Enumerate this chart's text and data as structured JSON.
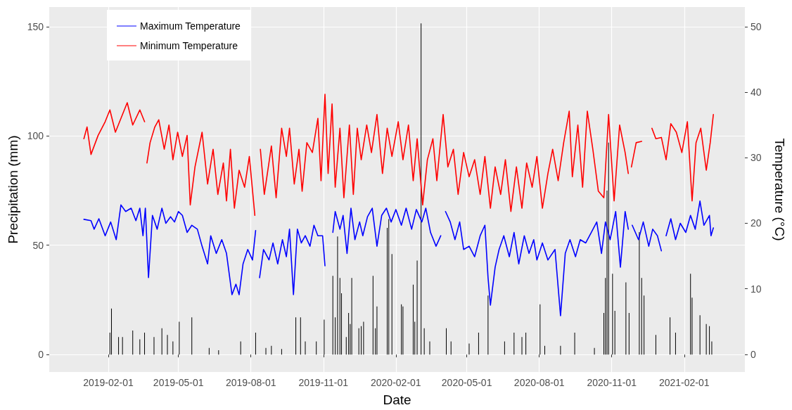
{
  "chart_data": {
    "type": "line",
    "xlabel": "Date",
    "ylabel": "Precipitation (mm)",
    "y2label": "Temperature (°C)",
    "xlim": [
      "2018-11-18",
      "2021-04-19"
    ],
    "xticks": [
      "2019-02-01",
      "2019-05-01",
      "2019-08-01",
      "2019-11-01",
      "2020-02-01",
      "2020-05-01",
      "2020-08-01",
      "2020-11-01",
      "2021-02-01"
    ],
    "ylim": [
      -8,
      159
    ],
    "yticks": [
      0,
      50,
      100,
      150
    ],
    "y2lim": [
      -2.7,
      53
    ],
    "y2ticks": [
      0,
      10,
      20,
      30,
      40,
      50
    ],
    "grid": true,
    "legend": "top left",
    "line_style": "solid",
    "marker": "none",
    "series": [
      {
        "type": "bar",
        "color": "#000000",
        "x": [
          "2019-02-03",
          "2019-02-05",
          "2019-02-14",
          "2019-02-19",
          "2019-03-04",
          "2019-03-13",
          "2019-03-19",
          "2019-03-31",
          "2019-04-10",
          "2019-04-17",
          "2019-04-24",
          "2019-05-02",
          "2019-05-18",
          "2019-06-09",
          "2019-06-21",
          "2019-07-19",
          "2019-08-07",
          "2019-08-20",
          "2019-08-27",
          "2019-09-09",
          "2019-09-27",
          "2019-10-03",
          "2019-10-09",
          "2019-10-23",
          "2019-11-02",
          "2019-11-13",
          "2019-11-16",
          "2019-11-19",
          "2019-11-22",
          "2019-11-24",
          "2019-11-30",
          "2019-12-03",
          "2019-12-05",
          "2019-12-07",
          "2019-12-16",
          "2019-12-19",
          "2019-12-22",
          "2020-01-03",
          "2020-01-06",
          "2020-01-08",
          "2020-01-21",
          "2020-01-23",
          "2020-01-27",
          "2020-02-08",
          "2020-02-10",
          "2020-02-23",
          "2020-02-25",
          "2020-02-28",
          "2020-03-04",
          "2020-03-08",
          "2020-03-15",
          "2020-04-05",
          "2020-04-11",
          "2020-05-04",
          "2020-05-16",
          "2020-05-28",
          "2020-06-18",
          "2020-06-30",
          "2020-07-10",
          "2020-07-15",
          "2020-08-02",
          "2020-08-08",
          "2020-08-28",
          "2020-09-15",
          "2020-10-10",
          "2020-10-22",
          "2020-10-24",
          "2020-10-26",
          "2020-10-28",
          "2020-11-02",
          "2020-11-05",
          "2020-11-19",
          "2020-11-23",
          "2020-12-06",
          "2020-12-09",
          "2020-12-12",
          "2020-12-27",
          "2021-01-14",
          "2021-01-21",
          "2021-02-09",
          "2021-02-11",
          "2021-02-21",
          "2021-03-01",
          "2021-03-05",
          "2021-03-08"
        ],
        "values": [
          10,
          21,
          8,
          8,
          11,
          7,
          10,
          8,
          12,
          9,
          6,
          15,
          17,
          3,
          2,
          6,
          10,
          3,
          4,
          2.5,
          17,
          17,
          6,
          6,
          16,
          36,
          17,
          54,
          35,
          28,
          8,
          19,
          14,
          35,
          12,
          13,
          15,
          36,
          12,
          22,
          58,
          62,
          46,
          23,
          22,
          32,
          15,
          43,
          151.5,
          12,
          6,
          12,
          6,
          5,
          10,
          27,
          6,
          10,
          8,
          10,
          23,
          4,
          4,
          10,
          3,
          19,
          35,
          75,
          97,
          37,
          20,
          33,
          19,
          56,
          35,
          27,
          9,
          17,
          10,
          37,
          26,
          18,
          14,
          13,
          6
        ]
      },
      {
        "name": "Maximum Temperature",
        "color": "#0000ff",
        "axis": "y2",
        "x": [
          "2019-01-01",
          "2019-01-10",
          "2019-01-14",
          "2019-01-20",
          "2019-01-28",
          "2019-02-04",
          "2019-02-11",
          "2019-02-17",
          "2019-02-23",
          "2019-03-02",
          "2019-03-08",
          "2019-03-13",
          "2019-03-17",
          "2019-03-20",
          "2019-03-24",
          "2019-03-29",
          "2019-04-04",
          "2019-04-10",
          "2019-04-15",
          "2019-04-21",
          "2019-04-26",
          "2019-05-01",
          "2019-05-06",
          "2019-05-12",
          "2019-05-18",
          "2019-05-25",
          "2019-05-31",
          "2019-06-07",
          "2019-06-11",
          "2019-06-18",
          "2019-06-25",
          "2019-07-01",
          "2019-07-08",
          "2019-07-13",
          "2019-07-17",
          "2019-07-22",
          "2019-07-28",
          "2019-08-03",
          "2019-08-07",
          "2019-08-09",
          "2019-08-12",
          "2019-08-17",
          "2019-08-24",
          "2019-08-29",
          "2019-09-04",
          "2019-09-10",
          "2019-09-15",
          "2019-09-19",
          "2019-09-24",
          "2019-09-29",
          "2019-10-04",
          "2019-10-09",
          "2019-10-15",
          "2019-10-20",
          "2019-10-25",
          "2019-10-31",
          "2019-11-03",
          "2019-11-07",
          "2019-11-13",
          "2019-11-16",
          "2019-11-22",
          "2019-11-26",
          "2019-12-01",
          "2019-12-06",
          "2019-12-11",
          "2019-12-17",
          "2019-12-21",
          "2019-12-27",
          "2020-01-02",
          "2020-01-08",
          "2020-01-14",
          "2020-01-20",
          "2020-01-26",
          "2020-02-01",
          "2020-02-08",
          "2020-02-14",
          "2020-02-21",
          "2020-02-27",
          "2020-03-05",
          "2020-03-10",
          "2020-03-16",
          "2020-03-23",
          "2020-03-29",
          "2020-04-01",
          "2020-04-04",
          "2020-04-10",
          "2020-04-16",
          "2020-04-22",
          "2020-04-27",
          "2020-05-04",
          "2020-05-11",
          "2020-05-18",
          "2020-05-24",
          "2020-05-28",
          "2020-05-31",
          "2020-06-06",
          "2020-06-11",
          "2020-06-17",
          "2020-06-24",
          "2020-06-30",
          "2020-07-06",
          "2020-07-13",
          "2020-07-19",
          "2020-07-25",
          "2020-07-29",
          "2020-08-05",
          "2020-08-12",
          "2020-08-21",
          "2020-08-28",
          "2020-09-03",
          "2020-09-09",
          "2020-09-16",
          "2020-09-22",
          "2020-09-29",
          "2020-10-06",
          "2020-10-13",
          "2020-10-19",
          "2020-10-24",
          "2020-10-30",
          "2020-11-06",
          "2020-11-12",
          "2020-11-18",
          "2020-11-22",
          "2020-11-24",
          "2020-11-27",
          "2020-12-05",
          "2020-12-11",
          "2020-12-18",
          "2020-12-23",
          "2020-12-29",
          "2021-01-03",
          "2021-01-05",
          "2021-01-09",
          "2021-01-15",
          "2021-01-21",
          "2021-01-27",
          "2021-02-03",
          "2021-02-09",
          "2021-02-15",
          "2021-02-21",
          "2021-02-26",
          "2021-03-05",
          "2021-03-07",
          "2021-03-10"
        ],
        "values": [
          20.6,
          20.4,
          19.1,
          20.7,
          18.1,
          20.2,
          17.5,
          22.8,
          21.8,
          22.3,
          20.4,
          22.3,
          18.1,
          22.3,
          11.7,
          21.2,
          19.1,
          22.3,
          20.0,
          21.0,
          20.2,
          21.8,
          21.2,
          18.6,
          19.7,
          19.1,
          16.5,
          13.8,
          18.1,
          15.4,
          17.5,
          15.4,
          9.1,
          10.7,
          9.1,
          13.8,
          16.0,
          14.4,
          18.9,
          null,
          11.7,
          16.0,
          14.4,
          17.0,
          13.8,
          17.5,
          14.9,
          19.1,
          9.1,
          19.1,
          17.0,
          18.1,
          16.5,
          19.7,
          18.1,
          18.1,
          13.5,
          null,
          18.6,
          21.8,
          19.1,
          21.2,
          15.4,
          22.3,
          17.5,
          20.2,
          18.1,
          21.0,
          22.3,
          16.5,
          21.2,
          22.3,
          20.2,
          22.1,
          19.7,
          22.3,
          19.1,
          22.1,
          20.2,
          22.3,
          18.6,
          16.5,
          18.1,
          null,
          21.8,
          20.2,
          17.5,
          20.2,
          16.0,
          16.5,
          14.9,
          18.1,
          19.7,
          11.7,
          7.5,
          13.3,
          16.0,
          18.1,
          14.9,
          18.6,
          13.8,
          18.1,
          15.4,
          17.5,
          14.4,
          17.0,
          14.4,
          16.0,
          5.9,
          15.4,
          17.5,
          14.9,
          17.5,
          17.0,
          18.6,
          20.2,
          15.4,
          20.2,
          17.5,
          21.8,
          13.3,
          21.8,
          19.1,
          null,
          19.7,
          17.5,
          20.2,
          16.5,
          19.1,
          18.1,
          15.8,
          null,
          18.1,
          20.7,
          17.5,
          20.0,
          18.6,
          21.2,
          19.1,
          23.4,
          19.7,
          21.2,
          18.1,
          19.3
        ]
      },
      {
        "name": "Minimum Temperature",
        "color": "#ff0000",
        "axis": "y2",
        "x": [
          "2019-01-01",
          "2019-01-05",
          "2019-01-10",
          "2019-01-19",
          "2019-01-28",
          "2019-02-03",
          "2019-02-10",
          "2019-02-19",
          "2019-02-25",
          "2019-03-04",
          "2019-03-13",
          "2019-03-19",
          "2019-03-20",
          "2019-03-22",
          "2019-03-26",
          "2019-04-01",
          "2019-04-06",
          "2019-04-13",
          "2019-04-19",
          "2019-04-24",
          "2019-04-30",
          "2019-05-06",
          "2019-05-12",
          "2019-05-16",
          "2019-05-22",
          "2019-05-31",
          "2019-06-07",
          "2019-06-14",
          "2019-06-20",
          "2019-06-27",
          "2019-07-01",
          "2019-07-06",
          "2019-07-11",
          "2019-07-17",
          "2019-07-24",
          "2019-07-30",
          "2019-08-06",
          "2019-08-09",
          "2019-08-13",
          "2019-08-18",
          "2019-08-27",
          "2019-09-02",
          "2019-09-09",
          "2019-09-15",
          "2019-09-19",
          "2019-09-25",
          "2019-10-01",
          "2019-10-05",
          "2019-10-11",
          "2019-10-18",
          "2019-10-25",
          "2019-10-29",
          "2019-11-03",
          "2019-11-07",
          "2019-11-12",
          "2019-11-16",
          "2019-11-22",
          "2019-11-27",
          "2019-12-04",
          "2019-12-09",
          "2019-12-14",
          "2019-12-19",
          "2019-12-26",
          "2020-01-01",
          "2020-01-08",
          "2020-01-15",
          "2020-01-21",
          "2020-01-27",
          "2020-02-04",
          "2020-02-10",
          "2020-02-17",
          "2020-02-23",
          "2020-02-28",
          "2020-03-06",
          "2020-03-12",
          "2020-03-19",
          "2020-03-24",
          "2020-04-01",
          "2020-04-07",
          "2020-04-14",
          "2020-04-20",
          "2020-04-27",
          "2020-05-04",
          "2020-05-11",
          "2020-05-18",
          "2020-05-24",
          "2020-05-31",
          "2020-06-06",
          "2020-06-13",
          "2020-06-19",
          "2020-06-26",
          "2020-07-03",
          "2020-07-10",
          "2020-07-16",
          "2020-07-23",
          "2020-07-29",
          "2020-08-05",
          "2020-08-12",
          "2020-08-18",
          "2020-08-25",
          "2020-09-01",
          "2020-09-08",
          "2020-09-12",
          "2020-09-19",
          "2020-09-25",
          "2020-10-01",
          "2020-10-08",
          "2020-10-15",
          "2020-10-22",
          "2020-10-28",
          "2020-11-04",
          "2020-11-11",
          "2020-11-18",
          "2020-11-22",
          "2020-11-24",
          "2020-11-26",
          "2020-12-02",
          "2020-12-09",
          "2020-12-15",
          "2020-12-22",
          "2020-12-27",
          "2021-01-03",
          "2021-01-09",
          "2021-01-15",
          "2021-01-22",
          "2021-01-29",
          "2021-02-05",
          "2021-02-11",
          "2021-02-16",
          "2021-02-22",
          "2021-03-01",
          "2021-03-06",
          "2021-03-10"
        ],
        "values": [
          32.9,
          34.7,
          30.5,
          33.4,
          35.5,
          37.3,
          33.9,
          36.6,
          38.4,
          35.0,
          37.3,
          35.5,
          null,
          29.2,
          32.3,
          34.7,
          35.8,
          31.3,
          35.0,
          29.7,
          33.9,
          30.2,
          33.4,
          22.8,
          28.6,
          33.9,
          26.0,
          31.3,
          24.4,
          29.2,
          23.4,
          31.3,
          22.3,
          28.1,
          25.5,
          30.2,
          21.2,
          null,
          31.3,
          24.4,
          31.8,
          23.9,
          34.5,
          30.2,
          34.5,
          26.0,
          31.3,
          24.9,
          32.3,
          30.8,
          36.0,
          26.5,
          39.7,
          27.6,
          38.2,
          25.5,
          34.5,
          23.9,
          35.0,
          24.4,
          34.5,
          29.7,
          35.0,
          30.8,
          36.6,
          27.6,
          34.5,
          30.2,
          35.5,
          29.7,
          35.0,
          26.5,
          32.9,
          22.8,
          29.7,
          32.9,
          26.5,
          36.6,
          28.6,
          31.3,
          24.4,
          30.8,
          27.1,
          29.7,
          24.4,
          30.2,
          22.3,
          28.6,
          24.4,
          29.7,
          21.8,
          28.6,
          22.3,
          29.2,
          25.5,
          30.2,
          22.3,
          27.6,
          31.3,
          26.5,
          32.3,
          37.1,
          27.1,
          35.0,
          25.5,
          37.1,
          31.3,
          24.9,
          23.9,
          36.6,
          23.4,
          35.0,
          30.8,
          27.6,
          null,
          28.6,
          32.3,
          32.5,
          null,
          34.5,
          32.9,
          33.1,
          29.7,
          35.2,
          33.9,
          30.8,
          35.5,
          23.4,
          32.3,
          34.5,
          28.1,
          32.3,
          36.6
        ]
      }
    ]
  }
}
